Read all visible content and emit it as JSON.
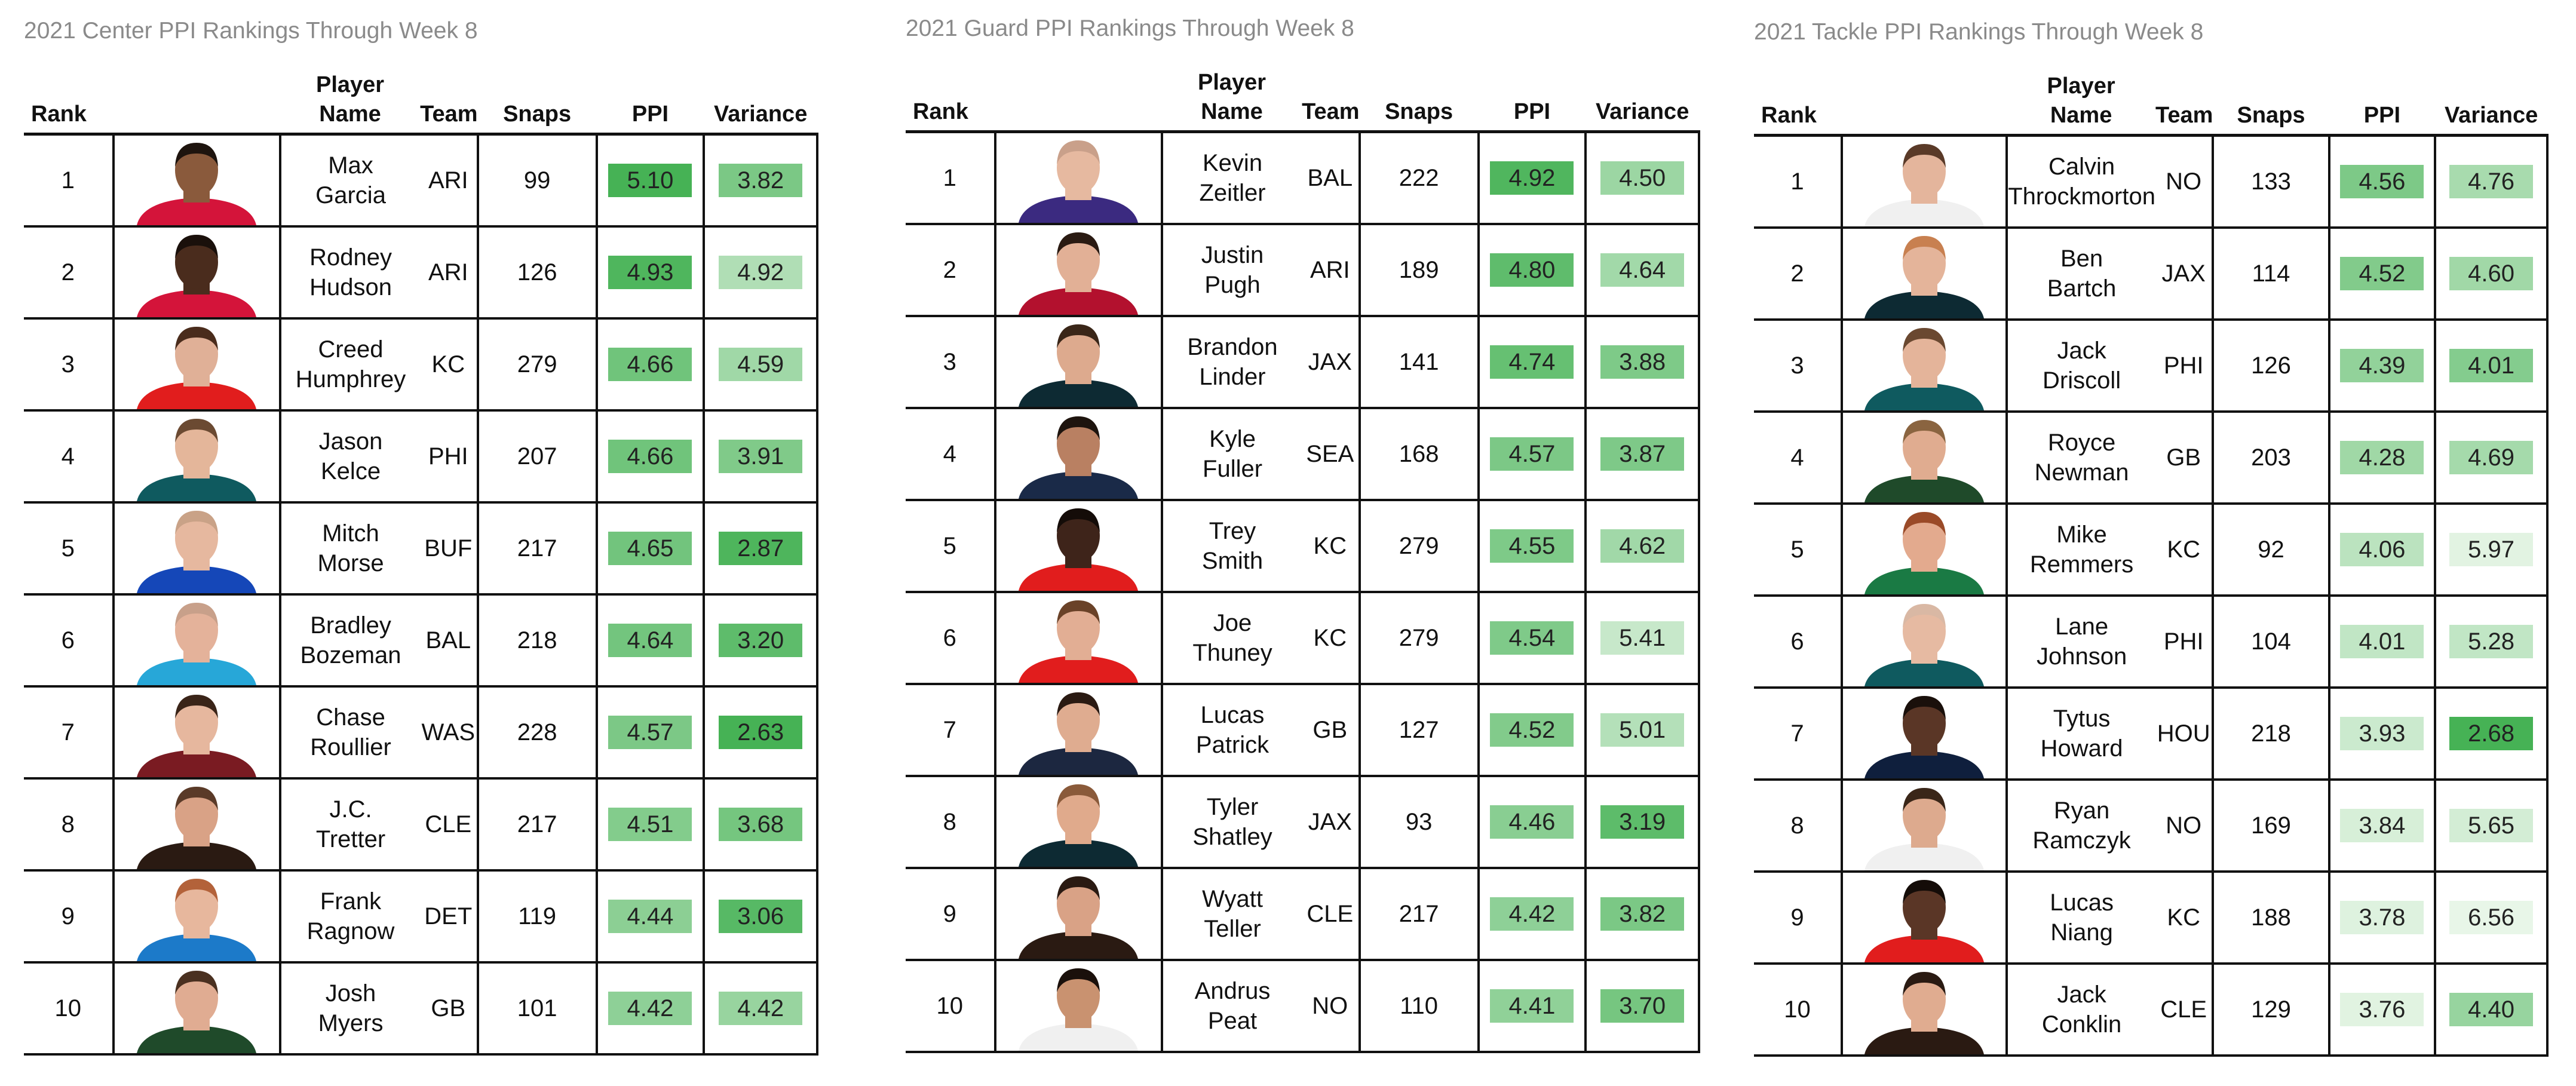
{
  "headers": {
    "rank": "Rank",
    "player_name": "Player Name",
    "team": "Team",
    "snaps": "Snaps",
    "ppi": "PPI",
    "variance": "Variance"
  },
  "panels": [
    {
      "title": "2021 Center PPI Rankings Through Week 8",
      "rows": [
        {
          "rank": "1",
          "first": "Max",
          "last": "Garcia",
          "team": "ARI",
          "snaps": "99",
          "ppi": "5.10",
          "variance": "3.82",
          "jersey": "#d4143a",
          "skin": "#8a5a3c",
          "hair": "#1e140e"
        },
        {
          "rank": "2",
          "first": "Rodney",
          "last": "Hudson",
          "team": "ARI",
          "snaps": "126",
          "ppi": "4.93",
          "variance": "4.92",
          "jersey": "#d4143a",
          "skin": "#4a2c1d",
          "hair": "#1a100b"
        },
        {
          "rank": "3",
          "first": "Creed",
          "last": "Humphrey",
          "team": "KC",
          "snaps": "279",
          "ppi": "4.66",
          "variance": "4.59",
          "jersey": "#e11d1d",
          "skin": "#e0b097",
          "hair": "#4a2c1c"
        },
        {
          "rank": "4",
          "first": "Jason",
          "last": "Kelce",
          "team": "PHI",
          "snaps": "207",
          "ppi": "4.66",
          "variance": "3.91",
          "jersey": "#0f5a5f",
          "skin": "#e4b69a",
          "hair": "#6b4a32"
        },
        {
          "rank": "5",
          "first": "Mitch",
          "last": "Morse",
          "team": "BUF",
          "snaps": "217",
          "ppi": "4.65",
          "variance": "2.87",
          "jersey": "#1547b8",
          "skin": "#e6b89f",
          "hair": "#c9a287"
        },
        {
          "rank": "6",
          "first": "Bradley",
          "last": "Bozeman",
          "team": "BAL",
          "snaps": "218",
          "ppi": "4.64",
          "variance": "3.20",
          "jersey": "#27a7d8",
          "skin": "#e4b29a",
          "hair": "#c8a08a"
        },
        {
          "rank": "7",
          "first": "Chase",
          "last": "Roullier",
          "team": "WAS",
          "snaps": "228",
          "ppi": "4.57",
          "variance": "2.63",
          "jersey": "#7a1b22",
          "skin": "#e6b79e",
          "hair": "#3a2418"
        },
        {
          "rank": "8",
          "first": "J.C.",
          "last": "Tretter",
          "team": "CLE",
          "snaps": "217",
          "ppi": "4.51",
          "variance": "3.68",
          "jersey": "#2a1a12",
          "skin": "#d9a286",
          "hair": "#5a3a28"
        },
        {
          "rank": "9",
          "first": "Frank",
          "last": "Ragnow",
          "team": "DET",
          "snaps": "119",
          "ppi": "4.44",
          "variance": "3.06",
          "jersey": "#1c7ac9",
          "skin": "#e7b79d",
          "hair": "#b3623a"
        },
        {
          "rank": "10",
          "first": "Josh",
          "last": "Myers",
          "team": "GB",
          "snaps": "101",
          "ppi": "4.42",
          "variance": "4.42",
          "jersey": "#1f4a2a",
          "skin": "#e0ac92",
          "hair": "#4a3020"
        }
      ]
    },
    {
      "title": "2021 Guard PPI Rankings Through Week 8",
      "rows": [
        {
          "rank": "1",
          "first": "Kevin",
          "last": "Zeitler",
          "team": "BAL",
          "snaps": "222",
          "ppi": "4.92",
          "variance": "4.50",
          "jersey": "#3b2a80",
          "skin": "#e6b9a0",
          "hair": "#c9a08a"
        },
        {
          "rank": "2",
          "first": "Justin",
          "last": "Pugh",
          "team": "ARI",
          "snaps": "189",
          "ppi": "4.80",
          "variance": "4.64",
          "jersey": "#b3112e",
          "skin": "#e2b096",
          "hair": "#2a1a12"
        },
        {
          "rank": "3",
          "first": "Brandon",
          "last": "Linder",
          "team": "JAX",
          "snaps": "141",
          "ppi": "4.74",
          "variance": "3.88",
          "jersey": "#0d2a33",
          "skin": "#ddaa8e",
          "hair": "#3a2618"
        },
        {
          "rank": "4",
          "first": "Kyle",
          "last": "Fuller",
          "team": "SEA",
          "snaps": "168",
          "ppi": "4.57",
          "variance": "3.87",
          "jersey": "#1a2a48",
          "skin": "#b98062",
          "hair": "#1e140e"
        },
        {
          "rank": "5",
          "first": "Trey",
          "last": "Smith",
          "team": "KC",
          "snaps": "279",
          "ppi": "4.55",
          "variance": "4.62",
          "jersey": "#e11d1d",
          "skin": "#3e241a",
          "hair": "#140c08"
        },
        {
          "rank": "6",
          "first": "Joe",
          "last": "Thuney",
          "team": "KC",
          "snaps": "279",
          "ppi": "4.54",
          "variance": "5.41",
          "jersey": "#e11d1d",
          "skin": "#e2ae94",
          "hair": "#6a4228"
        },
        {
          "rank": "7",
          "first": "Lucas",
          "last": "Patrick",
          "team": "GB",
          "snaps": "127",
          "ppi": "4.52",
          "variance": "5.01",
          "jersey": "#1c2740",
          "skin": "#dfac90",
          "hair": "#2a1a12"
        },
        {
          "rank": "8",
          "first": "Tyler",
          "last": "Shatley",
          "team": "JAX",
          "snaps": "93",
          "ppi": "4.46",
          "variance": "3.19",
          "jersey": "#0d2a33",
          "skin": "#e0aa8c",
          "hair": "#8a5a3a"
        },
        {
          "rank": "9",
          "first": "Wyatt",
          "last": "Teller",
          "team": "CLE",
          "snaps": "217",
          "ppi": "4.42",
          "variance": "3.82",
          "jersey": "#2a1a12",
          "skin": "#d9a286",
          "hair": "#2a1a12"
        },
        {
          "rank": "10",
          "first": "Andrus",
          "last": "Peat",
          "team": "NO",
          "snaps": "110",
          "ppi": "4.41",
          "variance": "3.70",
          "jersey": "#f0f0f0",
          "skin": "#c99270",
          "hair": "#1a100b"
        }
      ]
    },
    {
      "title": "2021 Tackle PPI Rankings Through Week 8",
      "rows": [
        {
          "rank": "1",
          "first": "Calvin",
          "last": "Throckmorton",
          "team": "NO",
          "snaps": "133",
          "ppi": "4.56",
          "variance": "4.76",
          "jersey": "#f0f0f0",
          "skin": "#e4b59c",
          "hair": "#5a3a28"
        },
        {
          "rank": "2",
          "first": "Ben",
          "last": "Bartch",
          "team": "JAX",
          "snaps": "114",
          "ppi": "4.52",
          "variance": "4.60",
          "jersey": "#0d2a33",
          "skin": "#e4b49a",
          "hair": "#c88050"
        },
        {
          "rank": "3",
          "first": "Jack",
          "last": "Driscoll",
          "team": "PHI",
          "snaps": "126",
          "ppi": "4.39",
          "variance": "4.01",
          "jersey": "#0f5a5f",
          "skin": "#e4b49a",
          "hair": "#6a4830"
        },
        {
          "rank": "4",
          "first": "Royce",
          "last": "Newman",
          "team": "GB",
          "snaps": "203",
          "ppi": "4.28",
          "variance": "4.69",
          "jersey": "#1f4a2a",
          "skin": "#e0ac90",
          "hair": "#8a6440"
        },
        {
          "rank": "5",
          "first": "Mike",
          "last": "Remmers",
          "team": "KC",
          "snaps": "92",
          "ppi": "4.06",
          "variance": "5.97",
          "jersey": "#1a7a44",
          "skin": "#e3aa8e",
          "hair": "#9a4a28"
        },
        {
          "rank": "6",
          "first": "Lane",
          "last": "Johnson",
          "team": "PHI",
          "snaps": "104",
          "ppi": "4.01",
          "variance": "5.28",
          "jersey": "#0f5a5f",
          "skin": "#e6baa2",
          "hair": "#d9b8a4"
        },
        {
          "rank": "7",
          "first": "Tytus",
          "last": "Howard",
          "team": "HOU",
          "snaps": "218",
          "ppi": "3.93",
          "variance": "2.68",
          "jersey": "#0f1f3d",
          "skin": "#5a3626",
          "hair": "#1a100b"
        },
        {
          "rank": "8",
          "first": "Ryan",
          "last": "Ramczyk",
          "team": "NO",
          "snaps": "169",
          "ppi": "3.84",
          "variance": "5.65",
          "jersey": "#f0f0f0",
          "skin": "#ddaa8e",
          "hair": "#3a2618"
        },
        {
          "rank": "9",
          "first": "Lucas",
          "last": "Niang",
          "team": "KC",
          "snaps": "188",
          "ppi": "3.78",
          "variance": "6.56",
          "jersey": "#e11d1d",
          "skin": "#5a3626",
          "hair": "#140c08"
        },
        {
          "rank": "10",
          "first": "Jack",
          "last": "Conklin",
          "team": "CLE",
          "snaps": "129",
          "ppi": "3.76",
          "variance": "4.40",
          "jersey": "#2a1a12",
          "skin": "#e0ac90",
          "hair": "#2a1a12"
        }
      ]
    }
  ]
}
